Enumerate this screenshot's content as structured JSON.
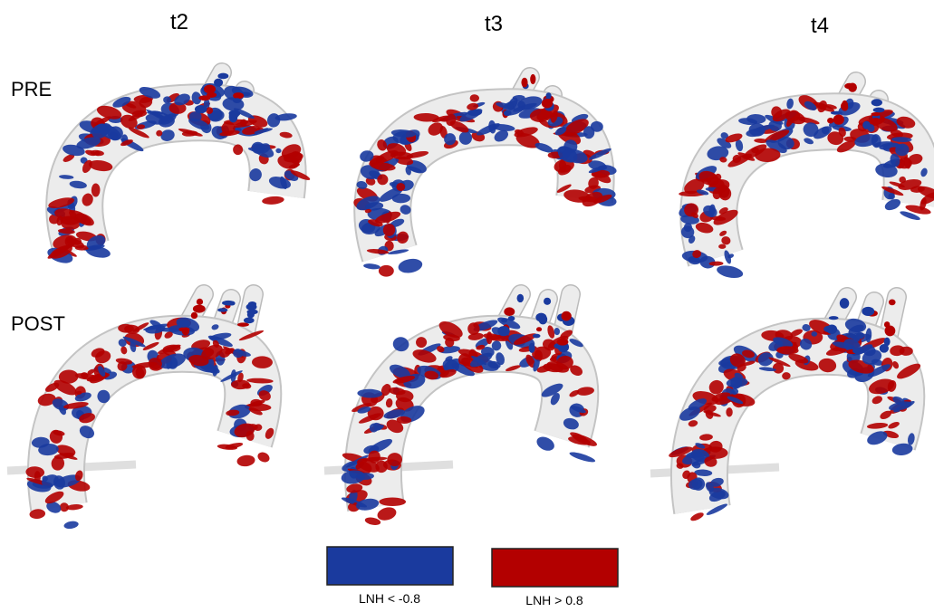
{
  "columns": [
    "t2",
    "t3",
    "t4"
  ],
  "rows": [
    "PRE",
    "POST"
  ],
  "legend": [
    {
      "label": "LNH < -0.8",
      "color": "#1a3a9e"
    },
    {
      "label": "LNH > 0.8",
      "color": "#b30000"
    }
  ]
}
